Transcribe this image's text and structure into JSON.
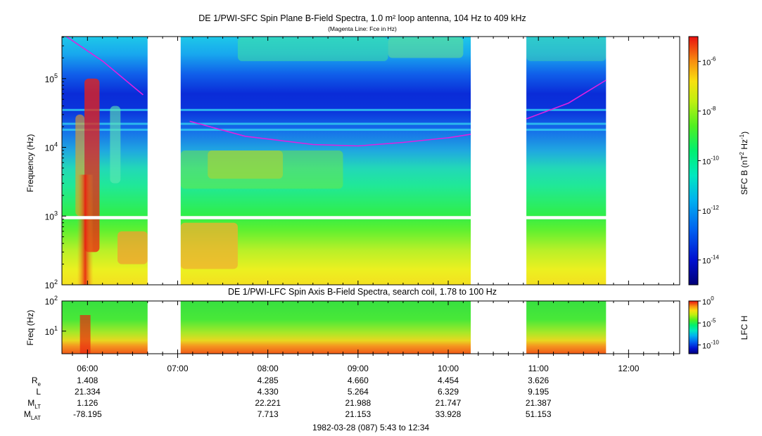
{
  "chart_data": [
    {
      "type": "heatmap",
      "title": "DE 1/PWI-SFC  Spin Plane B-Field Spectra, 1.0 m² loop antenna, 104 Hz to 409 kHz",
      "subtitle": "(Magenta Line: Fce in Hz)",
      "ylabel": "Frequency (Hz)",
      "yscale": "log",
      "ylim": [
        100,
        409000
      ],
      "y_ticks": [
        {
          "base": "10",
          "exp": "2"
        },
        {
          "base": "10",
          "exp": "3"
        },
        {
          "base": "10",
          "exp": "4"
        },
        {
          "base": "10",
          "exp": "5"
        }
      ],
      "colorbar": {
        "label": "SFC B (nT",
        "label_exp1": "2",
        "label_mid": " Hz",
        "label_exp2": "-1",
        "label_end": ")",
        "scale": "log",
        "range": [
          1e-15,
          1e-05
        ],
        "ticks": [
          {
            "base": "10",
            "exp": "-6"
          },
          {
            "base": "10",
            "exp": "-8"
          },
          {
            "base": "10",
            "exp": "-10"
          },
          {
            "base": "10",
            "exp": "-12"
          },
          {
            "base": "10",
            "exp": "-14"
          }
        ]
      },
      "data_gaps": [
        [
          "06:40",
          "07:02"
        ],
        [
          "10:15",
          "10:52"
        ],
        [
          "11:45",
          "12:34"
        ]
      ],
      "fce_line": [
        {
          "segment": 1,
          "points": [
            [
              "05:46",
              409000
            ],
            [
              "06:10",
              180000
            ],
            [
              "06:37",
              58000
            ]
          ]
        },
        {
          "segment": 2,
          "points": [
            [
              "07:08",
              24000
            ],
            [
              "07:45",
              14500
            ],
            [
              "08:30",
              11000
            ],
            [
              "09:00",
              10500
            ],
            [
              "09:30",
              11800
            ],
            [
              "10:00",
              13800
            ],
            [
              "10:15",
              15500
            ]
          ]
        },
        {
          "segment": 3,
          "points": [
            [
              "10:52",
              26000
            ],
            [
              "11:20",
              44000
            ],
            [
              "11:45",
              95000
            ]
          ]
        }
      ],
      "colors": {
        "fce_line": "#e020e0"
      }
    },
    {
      "type": "heatmap",
      "title": "DE 1/PWI-LFC  Spin Axis B-Field Spectra, search coil, 1.78 to 100 Hz",
      "ylabel": "Freq (Hz)",
      "yscale": "log",
      "ylim": [
        1.78,
        100
      ],
      "y_ticks": [
        {
          "base": "10",
          "exp": "1"
        },
        {
          "base": "10",
          "exp": "2"
        }
      ],
      "colorbar": {
        "label": "LFC H",
        "scale": "log",
        "range": [
          1e-12,
          1
        ],
        "ticks": [
          {
            "base": "10",
            "exp": "0"
          },
          {
            "base": "10",
            "exp": "-5"
          },
          {
            "base": "10",
            "exp": "-10"
          }
        ]
      },
      "data_gaps": [
        [
          "06:40",
          "07:02"
        ],
        [
          "10:15",
          "10:52"
        ],
        [
          "11:45",
          "12:34"
        ]
      ]
    }
  ],
  "x_axis": {
    "start": "05:43",
    "end": "12:34",
    "tick_labels": [
      "06:00",
      "07:00",
      "08:00",
      "09:00",
      "10:00",
      "11:00",
      "12:00"
    ]
  },
  "ephemeris": {
    "rows": [
      {
        "label": "R",
        "sub": "e",
        "values": [
          "1.408",
          "",
          "4.285",
          "4.660",
          "4.454",
          "3.626",
          ""
        ]
      },
      {
        "label": "L",
        "sub": "",
        "values": [
          "21.334",
          "",
          "4.330",
          "5.264",
          "6.329",
          "9.195",
          ""
        ]
      },
      {
        "label": "M",
        "sub": "LT",
        "values": [
          "1.126",
          "",
          "22.221",
          "21.988",
          "21.747",
          "21.387",
          ""
        ]
      },
      {
        "label": "M",
        "sub": "LAT",
        "values": [
          "-78.195",
          "",
          "7.713",
          "21.153",
          "33.928",
          "51.153",
          ""
        ]
      }
    ]
  },
  "footer": "1982-03-28 (087) 5:43 to 12:34"
}
